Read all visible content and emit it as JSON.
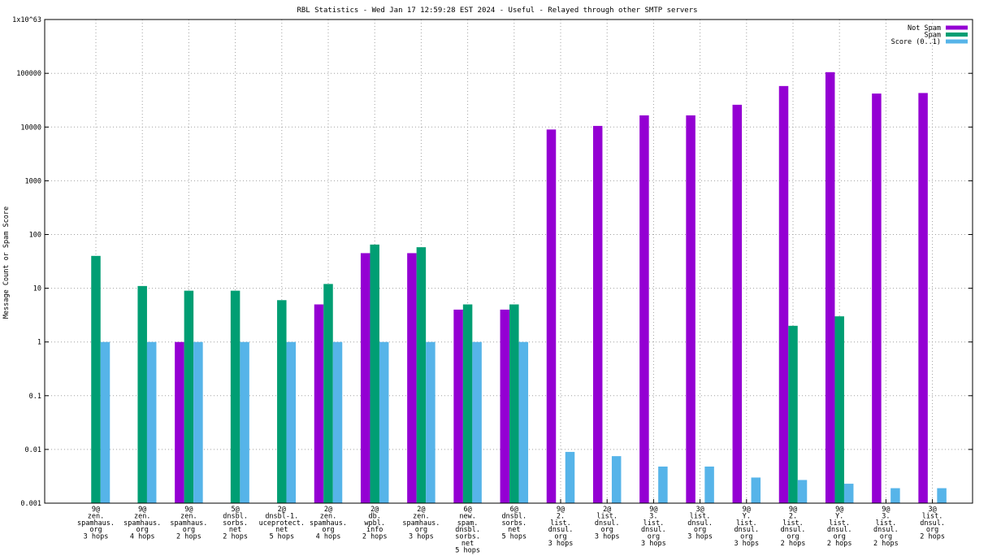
{
  "chart_data": {
    "type": "bar",
    "title": "RBL Statistics - Wed Jan 17 12:59:28 EST 2024 - Useful - Relayed through other SMTP servers",
    "ylabel": "Message Count or Spam Score",
    "xlabel": "",
    "yscale": "log",
    "ylim": [
      0.001,
      1e+63
    ],
    "yticks": [
      "0.001",
      "0.01",
      "0.1",
      "1",
      "10",
      "100",
      "1000",
      "10000",
      "100000",
      "1x10^63"
    ],
    "grid": true,
    "legend_position": "top-right",
    "categories": [
      "9@\nzen.\nspamhaus.\norg\n3 hops",
      "9@\nzen.\nspamhaus.\norg\n4 hops",
      "9@\nzen.\nspamhaus.\norg\n2 hops",
      "5@\ndnsbl.\nsorbs.\nnet\n2 hops",
      "2@\ndnsbl-1.\nuceprotect.\nnet\n5 hops",
      "2@\nzen.\nspamhaus.\norg\n4 hops",
      "2@\ndb.\nwpbl.\ninfo\n2 hops",
      "2@\nzen.\nspamhaus.\norg\n3 hops",
      "6@\nnew.\nspam.\ndnsbl.\nsorbs.\nnet\n5 hops",
      "6@\ndnsbl.\nsorbs.\nnet\n5 hops",
      "9@\n2.\nlist.\ndnsul.\norg\n3 hops",
      "2@\nlist.\ndnsul.\norg\n3 hops",
      "9@\n3.\nlist.\ndnsul.\norg\n3 hops",
      "3@\nlist.\ndnsul.\norg\n3 hops",
      "9@\nY.\nlist.\ndnsul.\norg\n3 hops",
      "9@\n2.\nlist.\ndnsul.\norg\n2 hops",
      "9@\nY.\nlist.\ndnsul.\norg\n2 hops",
      "9@\n3.\nlist.\ndnsul.\norg\n2 hops",
      "3@\nlist.\ndnsul.\norg\n2 hops"
    ],
    "series": [
      {
        "name": "Not Spam",
        "color": "#9400d3",
        "values": [
          null,
          null,
          1,
          null,
          null,
          5,
          45,
          45,
          4,
          4,
          9000,
          10500,
          16500,
          16500,
          26000,
          58000,
          105000,
          42000,
          43000
        ]
      },
      {
        "name": "Spam",
        "color": "#009e73",
        "values": [
          40,
          11,
          9,
          9,
          6,
          12,
          65,
          58,
          5,
          5,
          null,
          null,
          null,
          null,
          null,
          2,
          3,
          null,
          null
        ]
      },
      {
        "name": "Score (0..1)",
        "color": "#56b4e9",
        "values": [
          1,
          1,
          1,
          1,
          1,
          1,
          1,
          1,
          1,
          1,
          0.009,
          0.0075,
          0.0048,
          0.0048,
          0.003,
          0.0027,
          0.0023,
          0.0019,
          0.0019
        ]
      }
    ]
  }
}
